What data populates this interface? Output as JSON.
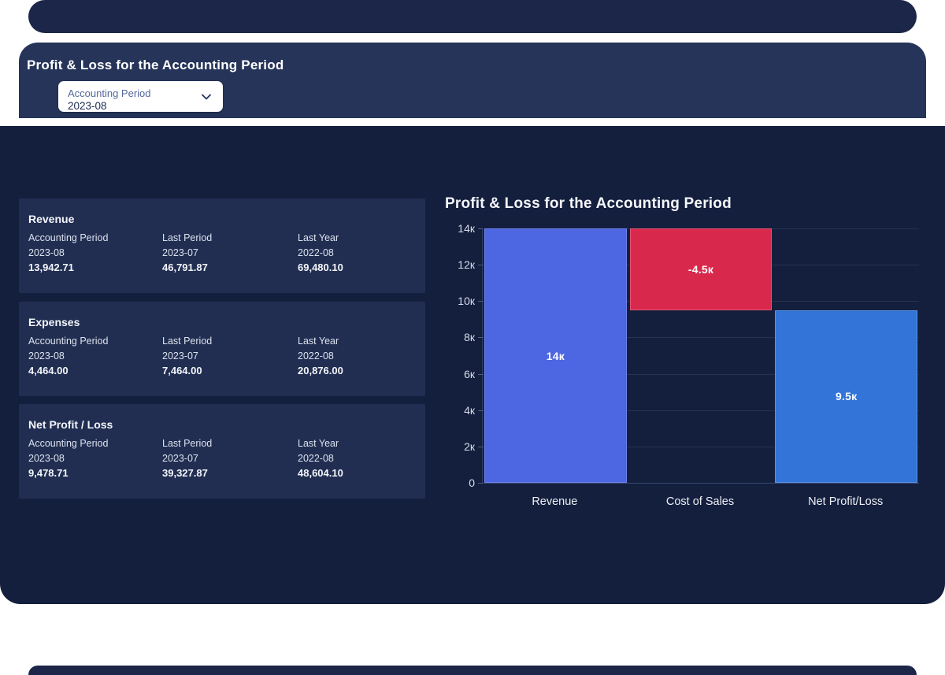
{
  "header": {
    "title": "Profit & Loss for the Accounting Period",
    "filter": {
      "label": "Accounting Period",
      "value": "2023-08",
      "icon": "chevron-down-icon"
    }
  },
  "stat_cards": [
    {
      "title": "Revenue",
      "columns": [
        {
          "label": "Accounting Period",
          "period": "2023-08",
          "value": "13,942.71"
        },
        {
          "label": "Last Period",
          "period": "2023-07",
          "value": "46,791.87"
        },
        {
          "label": "Last Year",
          "period": "2022-08",
          "value": "69,480.10"
        }
      ]
    },
    {
      "title": "Expenses",
      "columns": [
        {
          "label": "Accounting Period",
          "period": "2023-08",
          "value": "4,464.00"
        },
        {
          "label": "Last Period",
          "period": "2023-07",
          "value": "7,464.00"
        },
        {
          "label": "Last Year",
          "period": "2022-08",
          "value": "20,876.00"
        }
      ]
    },
    {
      "title": "Net Profit / Loss",
      "columns": [
        {
          "label": "Accounting Period",
          "period": "2023-08",
          "value": "9,478.71"
        },
        {
          "label": "Last Period",
          "period": "2023-07",
          "value": "39,327.87"
        },
        {
          "label": "Last Year",
          "period": "2022-08",
          "value": "48,604.10"
        }
      ]
    }
  ],
  "chart_data": {
    "type": "bar",
    "subtype": "waterfall",
    "title": "Profit & Loss for the Accounting Period",
    "categories": [
      "Revenue",
      "Cost of Sales",
      "Net Profit/Loss"
    ],
    "values": [
      13942.71,
      -4464.0,
      9478.71
    ],
    "series": [
      {
        "name": "Revenue",
        "start": 0,
        "end": 14000,
        "label": "14к",
        "color": "#4d66e1",
        "border_color": "#6f83ed"
      },
      {
        "name": "Cost of Sales",
        "start": 9500,
        "end": 14000,
        "label": "-4.5к",
        "color": "#d8294d",
        "border_color": "#e25672"
      },
      {
        "name": "Net Profit/Loss",
        "start": 0,
        "end": 9500,
        "label": "9.5к",
        "color": "#3274d8",
        "border_color": "#5a91e4"
      }
    ],
    "y_ticks": [
      {
        "value": 14000,
        "label": "14к"
      },
      {
        "value": 12000,
        "label": "12к"
      },
      {
        "value": 10000,
        "label": "10к"
      },
      {
        "value": 8000,
        "label": "8к"
      },
      {
        "value": 6000,
        "label": "6к"
      },
      {
        "value": 4000,
        "label": "4к"
      },
      {
        "value": 2000,
        "label": "2к"
      },
      {
        "value": 0,
        "label": "0"
      }
    ],
    "ylim": [
      0,
      14000
    ],
    "grid": true,
    "legend": "none"
  },
  "colors": {
    "page_background": "#ffffff",
    "band": "#1b2648",
    "header_background": "#263459",
    "main_background": "#141f3e",
    "stat_card_background": "#212e52",
    "text_primary": "#ffffff",
    "text_secondary": "#dde2ee",
    "dropdown_label": "#54689b",
    "dropdown_value": "#1c2b52",
    "bar_revenue": "#4d66e1",
    "bar_cost_of_sales": "#d8294d",
    "bar_net_profit": "#3274d8"
  }
}
